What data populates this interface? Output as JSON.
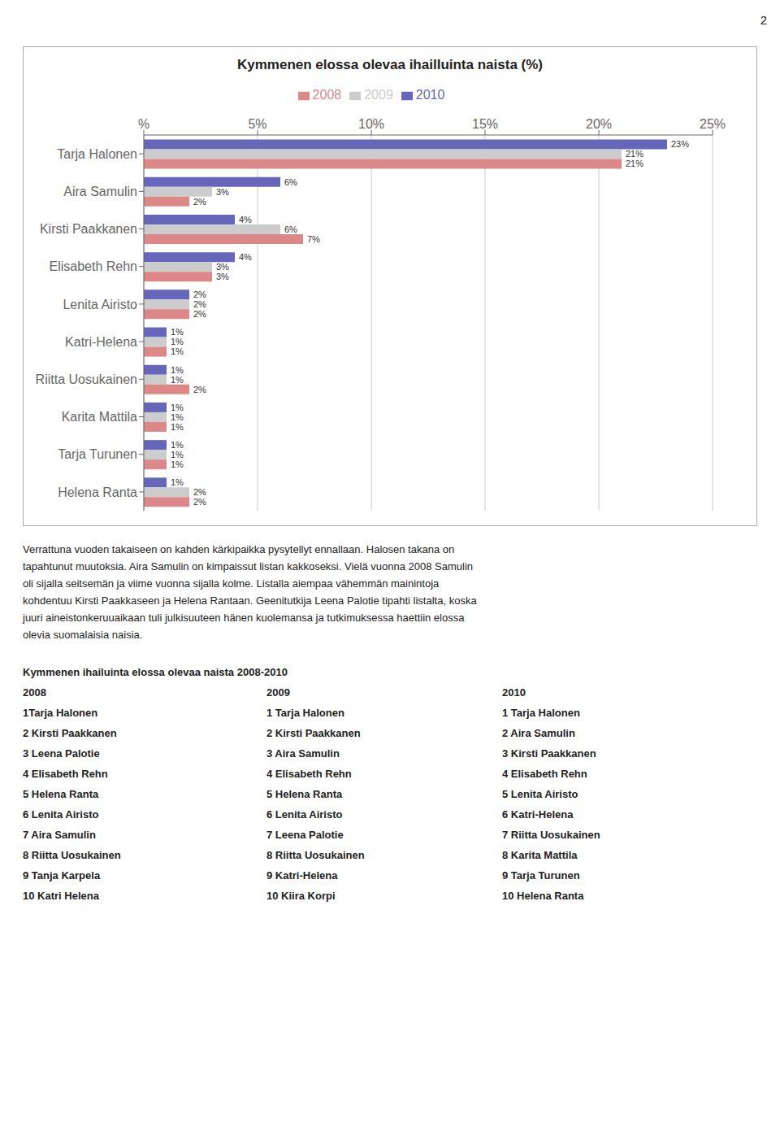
{
  "chart_data": {
    "type": "bar",
    "title": "Kymmenen elossa olevaa ihailluinta naista (%)",
    "orientation": "horizontal",
    "grid": true,
    "legend": "top",
    "data_labels": true,
    "categories": [
      "Tarja Halonen",
      "Aira Samulin",
      "Kirsti Paakkanen",
      "Elisabeth Rehn",
      "Lenita Airisto",
      "Katri-Helena",
      "Riitta Uosukainen",
      "Karita Mattila",
      "Tarja Turunen",
      "Helena Ranta"
    ],
    "series": [
      {
        "name": "2010",
        "color": "#6666bb",
        "values": [
          23,
          6,
          4,
          4,
          2,
          1,
          1,
          1,
          1,
          1
        ],
        "value_labels": [
          "23%",
          "6%",
          "4%",
          "4%",
          "2%",
          "1%",
          "1%",
          "1%",
          "1%",
          "1%"
        ]
      },
      {
        "name": "2009",
        "color": "#cccccc",
        "values": [
          21,
          3,
          6,
          3,
          2,
          1,
          1,
          1,
          1,
          2
        ],
        "value_labels": [
          "21%",
          "3%",
          "6%",
          "3%",
          "2%",
          "1%",
          "1%",
          "1%",
          "1%",
          "2%"
        ]
      },
      {
        "name": "2008",
        "color": "#dd8888",
        "values": [
          21,
          2,
          7,
          3,
          2,
          1,
          2,
          1,
          1,
          2
        ],
        "value_labels": [
          "21%",
          "2%",
          "7%",
          "3%",
          "2%",
          "1%",
          "2%",
          "1%",
          "1%",
          "2%"
        ]
      }
    ],
    "xlim": [
      0,
      25
    ],
    "xticks": [
      {
        "value": 0,
        "label": "%"
      },
      {
        "value": 5,
        "label": "5%"
      },
      {
        "value": 10,
        "label": "10%"
      },
      {
        "value": 15,
        "label": "15%"
      },
      {
        "value": 20,
        "label": "20%"
      },
      {
        "value": 25,
        "label": "25%"
      }
    ],
    "annotations": [
      "Verrattuna vuoden takaiseen on kahden kärkipaikka pysytellyt ennallaan. Halosen takana on",
      "tapahtunut muutoksia. Aira Samulin on kimpaissut listan kakkoseksi. Vielä vuonna 2008 Samulin",
      "oli sijalla seitsemän ja viime vuonna sijalla kolme. Listalla aiempaa vähemmän mainintoja",
      "kohdentuu Kirsti Paakkaseen ja Helena Rantaan. Geenitutkija Leena Palotie tipahti listalta, koska",
      "juuri aineistonkeruuaikaan tuli julkisuuteen hänen kuolemansa ja tutkimuksessa haettiin elossa",
      "olevia suomalaisia naisia."
    ],
    "table": {
      "title": "Kymmenen ihailuinta elossa olevaa naista 2008-2010",
      "headers": [
        "2008",
        "2009",
        "2010"
      ],
      "columns": [
        [
          "1Tarja Halonen",
          "2 Kirsti Paakkanen",
          "3 Leena Palotie",
          "4 Elisabeth Rehn",
          "5 Helena Ranta",
          "6 Lenita Airisto",
          "7 Aira Samulin",
          "8 Riitta Uosukainen",
          "9 Tanja Karpela",
          "10 Katri Helena"
        ],
        [
          "1 Tarja Halonen",
          "2 Kirsti Paakkanen",
          "3 Aira Samulin",
          "4 Elisabeth Rehn",
          "5 Helena Ranta",
          "6 Lenita Airisto",
          "7 Leena Palotie",
          "8 Riitta Uosukainen",
          "9 Katri-Helena",
          "10 Kiira Korpi"
        ],
        [
          "1 Tarja Halonen",
          "2 Aira Samulin",
          "3 Kirsti Paakkanen",
          "4 Elisabeth Rehn",
          "5 Lenita Airisto",
          "6 Katri-Helena",
          "7 Riitta Uosukainen",
          "8 Karita Mattila",
          "9 Tarja Turunen",
          "10 Helena Ranta"
        ]
      ]
    },
    "page_number": "2"
  }
}
